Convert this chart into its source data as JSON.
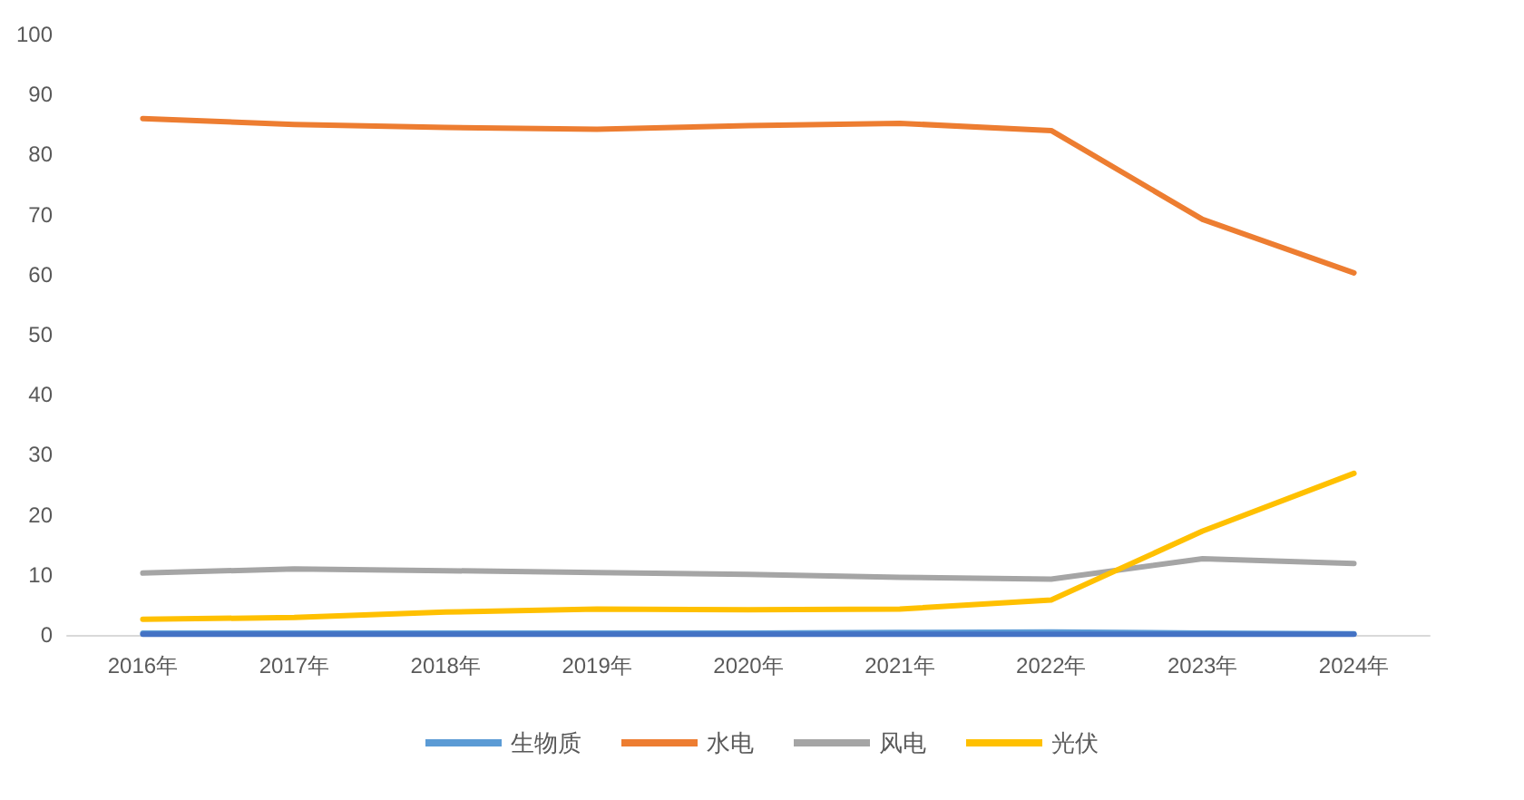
{
  "chart_data": {
    "type": "line",
    "categories": [
      "2016年",
      "2017年",
      "2018年",
      "2019年",
      "2020年",
      "2021年",
      "2022年",
      "2023年",
      "2024年"
    ],
    "series": [
      {
        "name": "生物质",
        "color": "#5b9bd5",
        "values": [
          0.3,
          0.3,
          0.3,
          0.3,
          0.3,
          0.4,
          0.5,
          0.3,
          0.2
        ]
      },
      {
        "name": "水电",
        "color": "#ed7d31",
        "values": [
          86.0,
          85.0,
          84.5,
          84.2,
          84.8,
          85.2,
          84.0,
          69.2,
          60.3
        ]
      },
      {
        "name": "风电",
        "color": "#a5a5a5",
        "values": [
          10.3,
          11.0,
          10.7,
          10.4,
          10.1,
          9.6,
          9.3,
          12.7,
          11.9
        ]
      },
      {
        "name": "光伏",
        "color": "#ffc000",
        "values": [
          2.6,
          2.9,
          3.8,
          4.3,
          4.2,
          4.3,
          5.8,
          17.3,
          26.9
        ]
      },
      {
        "color": "#4472c4",
        "values": [
          0.1,
          0.1,
          0.1,
          0.1,
          0.1,
          0.1,
          0.1,
          0.1,
          0.1
        ]
      }
    ],
    "ylim": [
      0,
      100
    ],
    "yticks": [
      0,
      10,
      20,
      30,
      40,
      50,
      60,
      70,
      80,
      90,
      100
    ],
    "legend": "bottom",
    "marker": "none",
    "line_style": "solid"
  }
}
